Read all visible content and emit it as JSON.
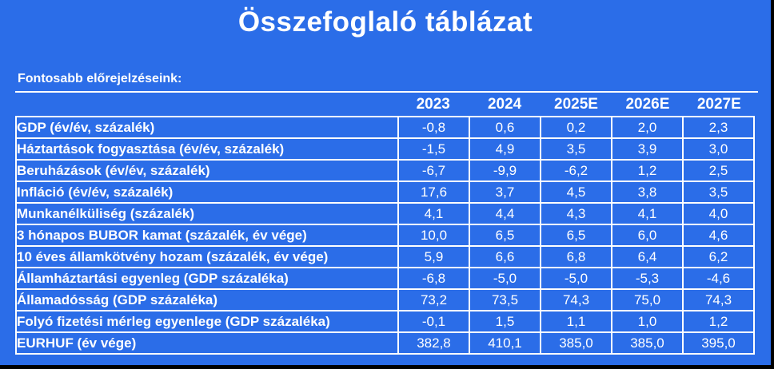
{
  "header": {
    "title": "Összefoglaló táblázat",
    "subtitle": "Fontosabb előrejelzéseink:"
  },
  "colors": {
    "background": "#2b6de8",
    "text": "#ffffff",
    "grid": "#ffffff",
    "edge": "#000000"
  },
  "chart_data": {
    "type": "table",
    "title": "Összefoglaló táblázat",
    "subtitle": "Fontosabb előrejelzéseink:",
    "columns": [
      "2023",
      "2024",
      "2025E",
      "2026E",
      "2027E"
    ],
    "rows": [
      {
        "label": "GDP (év/év, százalék)",
        "values": [
          "-0,8",
          "0,6",
          "0,2",
          "2,0",
          "2,3"
        ]
      },
      {
        "label": "Háztartások fogyasztása (év/év, százalék)",
        "values": [
          "-1,5",
          "4,9",
          "3,5",
          "3,9",
          "3,0"
        ]
      },
      {
        "label": "Beruházások (év/év, százalék)",
        "values": [
          "-6,7",
          "-9,9",
          "-6,2",
          "1,2",
          "2,5"
        ]
      },
      {
        "label": "Infláció (év/év, százalék)",
        "values": [
          "17,6",
          "3,7",
          "4,5",
          "3,8",
          "3,5"
        ]
      },
      {
        "label": "Munkanélküliség (százalék)",
        "values": [
          "4,1",
          "4,4",
          "4,3",
          "4,1",
          "4,0"
        ]
      },
      {
        "label": "3 hónapos BUBOR kamat (százalék, év vége)",
        "values": [
          "10,0",
          "6,5",
          "6,5",
          "6,0",
          "4,6"
        ]
      },
      {
        "label": "10 éves államkötvény hozam (százalék, év vége)",
        "values": [
          "5,9",
          "6,6",
          "6,8",
          "6,4",
          "6,2"
        ]
      },
      {
        "label": "Államháztartási egyenleg (GDP százaléka)",
        "values": [
          "-6,8",
          "-5,0",
          "-5,0",
          "-5,3",
          "-4,6"
        ]
      },
      {
        "label": "Államadósság (GDP százaléka)",
        "values": [
          "73,2",
          "73,5",
          "74,3",
          "75,0",
          "74,3"
        ]
      },
      {
        "label": "Folyó fizetési mérleg egyenlege (GDP százaléka)",
        "values": [
          "-0,1",
          "1,5",
          "1,1",
          "1,0",
          "1,2"
        ]
      },
      {
        "label": "EURHUF (év vége)",
        "values": [
          "382,8",
          "410,1",
          "385,0",
          "385,0",
          "395,0"
        ]
      }
    ]
  }
}
